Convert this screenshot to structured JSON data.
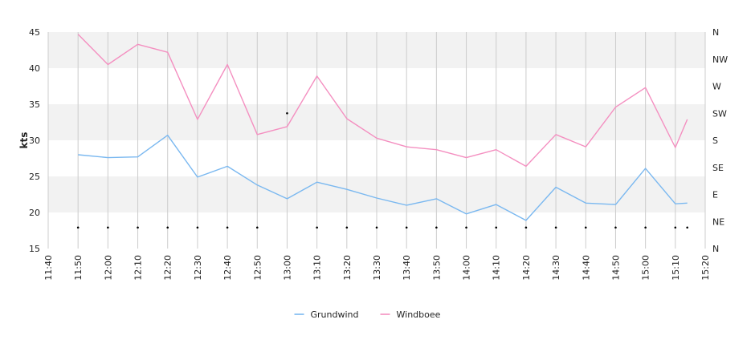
{
  "chart_data": {
    "type": "line",
    "title": "",
    "xlabel": "",
    "ylabel": "kts",
    "ylim": [
      15,
      45
    ],
    "y_ticks": [
      "15",
      "20",
      "25",
      "30",
      "35",
      "40",
      "45"
    ],
    "x_tick_labels": [
      "11:40",
      "11:50",
      "12:00",
      "12:10",
      "12:20",
      "12:30",
      "12:40",
      "12:50",
      "13:00",
      "13:10",
      "13:20",
      "13:30",
      "13:40",
      "13:50",
      "14:00",
      "14:10",
      "14:20",
      "14:30",
      "14:40",
      "14:50",
      "15:00",
      "15:10",
      "15:20"
    ],
    "x_range": [
      "11:40",
      "15:20"
    ],
    "y2_tick_labels": [
      "N",
      "NE",
      "E",
      "SE",
      "S",
      "SW",
      "W",
      "NW",
      "N"
    ],
    "y2_range": [
      0,
      360
    ],
    "grid": true,
    "background_bands": true,
    "legend_position": "bottom",
    "series": [
      {
        "name": "Grundwind",
        "color": "#7ab8f0",
        "x": [
          "11:50",
          "12:00",
          "12:10",
          "12:20",
          "12:30",
          "12:40",
          "12:50",
          "13:00",
          "13:10",
          "13:20",
          "13:30",
          "13:40",
          "13:50",
          "14:00",
          "14:10",
          "14:20",
          "14:30",
          "14:40",
          "14:50",
          "15:00",
          "15:10",
          "15:14"
        ],
        "values": [
          28.0,
          27.6,
          27.7,
          30.7,
          24.9,
          26.4,
          23.8,
          21.9,
          24.2,
          23.2,
          22.0,
          21.0,
          21.9,
          19.8,
          21.1,
          18.9,
          23.5,
          21.3,
          21.1,
          26.1,
          21.2,
          21.3
        ]
      },
      {
        "name": "Windboee",
        "color": "#f48fc0",
        "x": [
          "11:50",
          "12:00",
          "12:10",
          "12:20",
          "12:30",
          "12:40",
          "12:50",
          "13:00",
          "13:10",
          "13:20",
          "13:30",
          "13:40",
          "13:50",
          "14:00",
          "14:10",
          "14:20",
          "14:30",
          "14:40",
          "14:50",
          "15:00",
          "15:10",
          "15:14"
        ],
        "values": [
          44.7,
          40.5,
          43.3,
          42.2,
          32.9,
          40.5,
          30.8,
          31.9,
          38.9,
          33.0,
          30.3,
          29.1,
          28.7,
          27.6,
          28.7,
          26.4,
          30.8,
          29.1,
          34.6,
          37.3,
          29.0,
          32.9
        ]
      },
      {
        "name": "",
        "type": "scatter",
        "color": "#000000",
        "axis": "right",
        "x": [
          "11:50",
          "12:00",
          "12:10",
          "12:20",
          "12:30",
          "12:40",
          "12:50",
          "13:00",
          "13:10",
          "13:20",
          "13:30",
          "13:40",
          "13:50",
          "14:00",
          "14:10",
          "14:20",
          "14:30",
          "14:40",
          "14:50",
          "15:00",
          "15:10",
          "15:14"
        ],
        "values": [
          35,
          35,
          35,
          35,
          35,
          35,
          35,
          225,
          35,
          35,
          35,
          35,
          35,
          35,
          35,
          35,
          35,
          35,
          35,
          35,
          35,
          35
        ]
      }
    ]
  }
}
